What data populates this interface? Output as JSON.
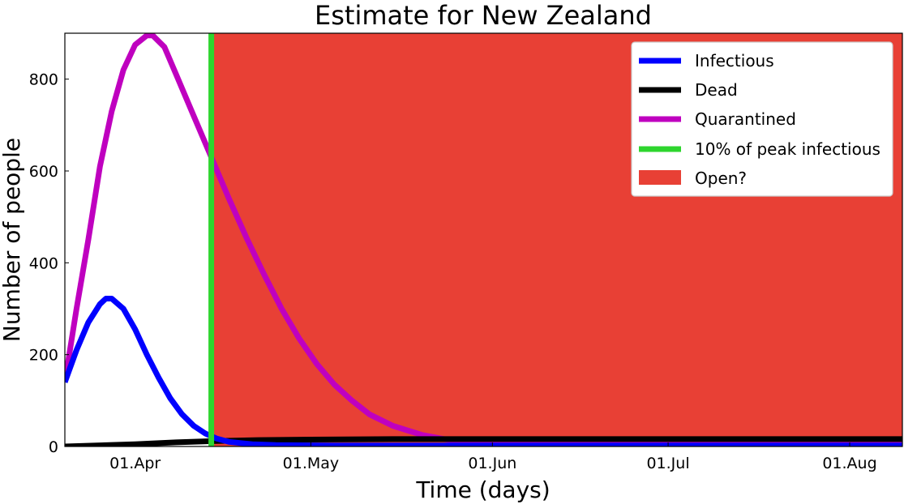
{
  "chart_data": {
    "type": "line",
    "title": "Estimate for New Zealand",
    "xlabel": "Time (days)",
    "ylabel": "Number of people",
    "x_range": [
      "2020-03-20",
      "2020-08-10"
    ],
    "ylim": [
      0,
      900
    ],
    "x_ticks": [
      {
        "label": "01.Apr",
        "date": "2020-04-01"
      },
      {
        "label": "01.May",
        "date": "2020-05-01"
      },
      {
        "label": "01.Jun",
        "date": "2020-06-01"
      },
      {
        "label": "01.Jul",
        "date": "2020-07-01"
      },
      {
        "label": "01.Aug",
        "date": "2020-08-01"
      }
    ],
    "y_ticks": [
      0,
      200,
      400,
      600,
      800
    ],
    "grid": false,
    "legend_position": "top-right",
    "series": [
      {
        "name": "Infectious",
        "color": "#0000ff",
        "points": [
          [
            "2020-03-20",
            140
          ],
          [
            "2020-03-22",
            210
          ],
          [
            "2020-03-24",
            270
          ],
          [
            "2020-03-26",
            310
          ],
          [
            "2020-03-27",
            322
          ],
          [
            "2020-03-28",
            322
          ],
          [
            "2020-03-30",
            300
          ],
          [
            "2020-04-01",
            255
          ],
          [
            "2020-04-03",
            200
          ],
          [
            "2020-04-05",
            150
          ],
          [
            "2020-04-07",
            105
          ],
          [
            "2020-04-09",
            70
          ],
          [
            "2020-04-11",
            45
          ],
          [
            "2020-04-13",
            28
          ],
          [
            "2020-04-15",
            17
          ],
          [
            "2020-04-17",
            10
          ],
          [
            "2020-04-21",
            5
          ],
          [
            "2020-04-25",
            3
          ],
          [
            "2020-05-05",
            2
          ],
          [
            "2020-06-01",
            2
          ],
          [
            "2020-07-01",
            2
          ],
          [
            "2020-08-10",
            2
          ]
        ]
      },
      {
        "name": "Dead",
        "color": "#000000",
        "points": [
          [
            "2020-03-20",
            0
          ],
          [
            "2020-03-25",
            2
          ],
          [
            "2020-04-01",
            5
          ],
          [
            "2020-04-08",
            9
          ],
          [
            "2020-04-15",
            12
          ],
          [
            "2020-04-22",
            14
          ],
          [
            "2020-05-01",
            15
          ],
          [
            "2020-05-15",
            16
          ],
          [
            "2020-06-01",
            16
          ],
          [
            "2020-07-01",
            16
          ],
          [
            "2020-08-10",
            16
          ]
        ]
      },
      {
        "name": "Quarantined",
        "color": "#bf00bf",
        "points": [
          [
            "2020-03-20",
            140
          ],
          [
            "2020-03-22",
            300
          ],
          [
            "2020-03-24",
            450
          ],
          [
            "2020-03-26",
            610
          ],
          [
            "2020-03-28",
            730
          ],
          [
            "2020-03-30",
            820
          ],
          [
            "2020-04-01",
            875
          ],
          [
            "2020-04-03",
            895
          ],
          [
            "2020-04-04",
            895
          ],
          [
            "2020-04-06",
            870
          ],
          [
            "2020-04-08",
            810
          ],
          [
            "2020-04-11",
            720
          ],
          [
            "2020-04-14",
            630
          ],
          [
            "2020-04-17",
            540
          ],
          [
            "2020-04-20",
            455
          ],
          [
            "2020-04-23",
            375
          ],
          [
            "2020-04-26",
            300
          ],
          [
            "2020-04-29",
            235
          ],
          [
            "2020-05-02",
            180
          ],
          [
            "2020-05-05",
            135
          ],
          [
            "2020-05-08",
            100
          ],
          [
            "2020-05-11",
            70
          ],
          [
            "2020-05-15",
            45
          ],
          [
            "2020-05-20",
            25
          ],
          [
            "2020-05-25",
            13
          ],
          [
            "2020-06-01",
            7
          ],
          [
            "2020-06-15",
            5
          ],
          [
            "2020-07-01",
            5
          ],
          [
            "2020-08-10",
            5
          ]
        ]
      }
    ],
    "vertical_line": {
      "name": "10% of peak infectious",
      "date": "2020-04-14",
      "color": "#2ed52e"
    },
    "shaded_region": {
      "name": "Open?",
      "x_start": "2020-04-14",
      "x_end": "2020-08-10",
      "color": "#e84035"
    }
  }
}
